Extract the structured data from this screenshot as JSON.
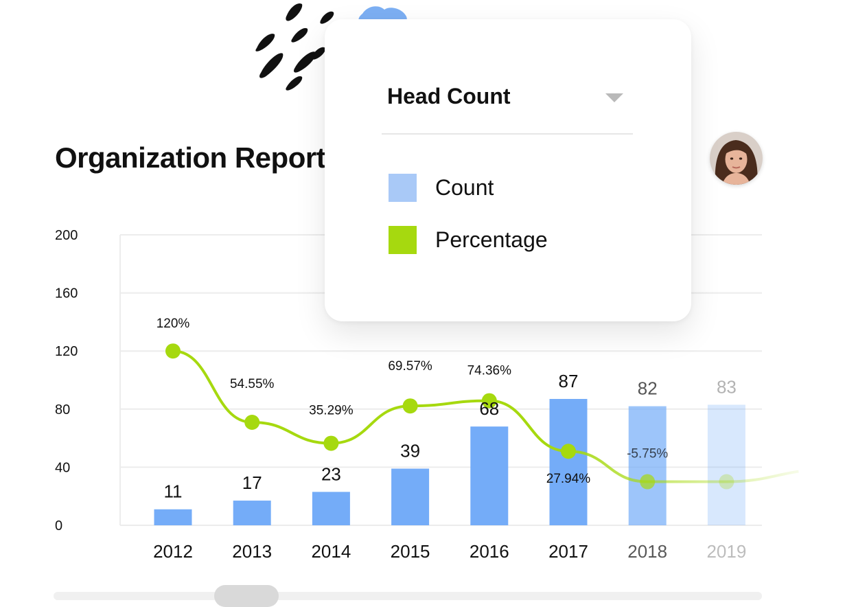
{
  "page": {
    "title": "Organization Report"
  },
  "dropdown": {
    "selected": "Head Count",
    "legend": [
      {
        "label": "Count",
        "color": "#a9c9f7"
      },
      {
        "label": "Percentage",
        "color": "#a6d90f"
      }
    ]
  },
  "chart_data": {
    "type": "bar",
    "categories": [
      "2012",
      "2013",
      "2014",
      "2015",
      "2016",
      "2017",
      "2018",
      "2019"
    ],
    "series": [
      {
        "name": "Count",
        "type": "bar",
        "values": [
          11,
          17,
          23,
          39,
          68,
          87,
          82,
          83
        ],
        "color": "#74acf8"
      },
      {
        "name": "Percentage",
        "type": "line",
        "values": [
          120,
          54.55,
          35.29,
          69.57,
          74.36,
          27.94,
          -5.75,
          null
        ],
        "labels": [
          "120%",
          "54.55%",
          "35.29%",
          "69.57%",
          "74.36%",
          "27.94%",
          "-5.75%",
          ""
        ],
        "color": "#a6d90f"
      }
    ],
    "yticks": [
      0,
      40,
      80,
      120,
      160,
      200
    ],
    "ylim": [
      0,
      200
    ],
    "grid": true,
    "fade_last_categories": true
  }
}
